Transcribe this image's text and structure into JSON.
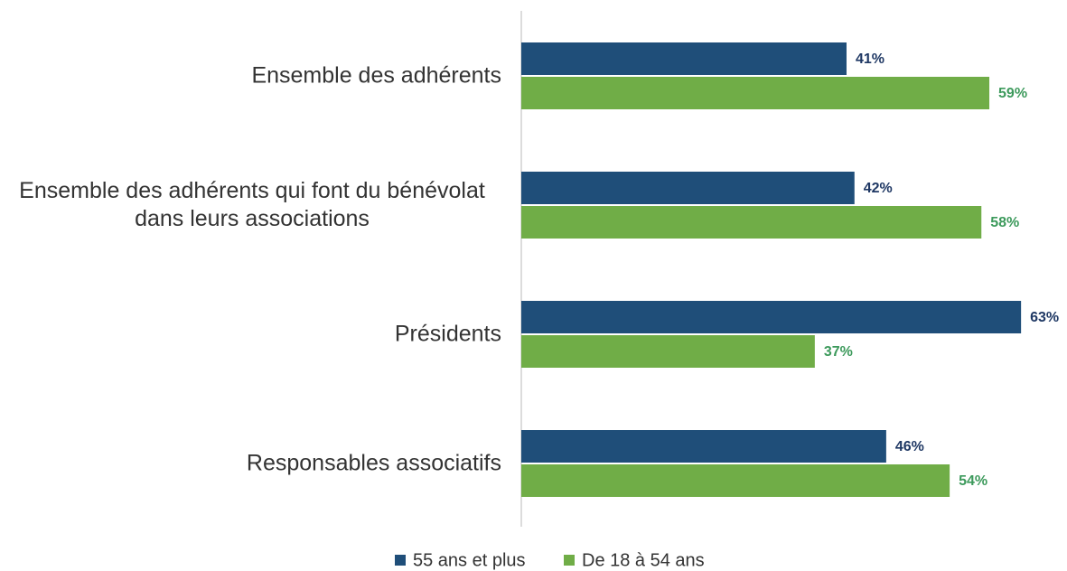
{
  "chart_data": {
    "type": "bar",
    "orientation": "horizontal",
    "categories": [
      "Ensemble des adhérents",
      "Ensemble des adhérents qui font du bénévolat dans leurs associations",
      "Présidents",
      "Responsables associatifs"
    ],
    "series": [
      {
        "name": "55 ans et plus",
        "color": "#1f4e79",
        "values": [
          41,
          42,
          63,
          46
        ],
        "value_labels": [
          "41%",
          "42%",
          "63%",
          "46%"
        ]
      },
      {
        "name": "De 18 à 54 ans",
        "color": "#70ad47",
        "values": [
          59,
          58,
          37,
          54
        ],
        "value_labels": [
          "59%",
          "58%",
          "37%",
          "54%"
        ]
      }
    ],
    "legend": "bottom"
  }
}
